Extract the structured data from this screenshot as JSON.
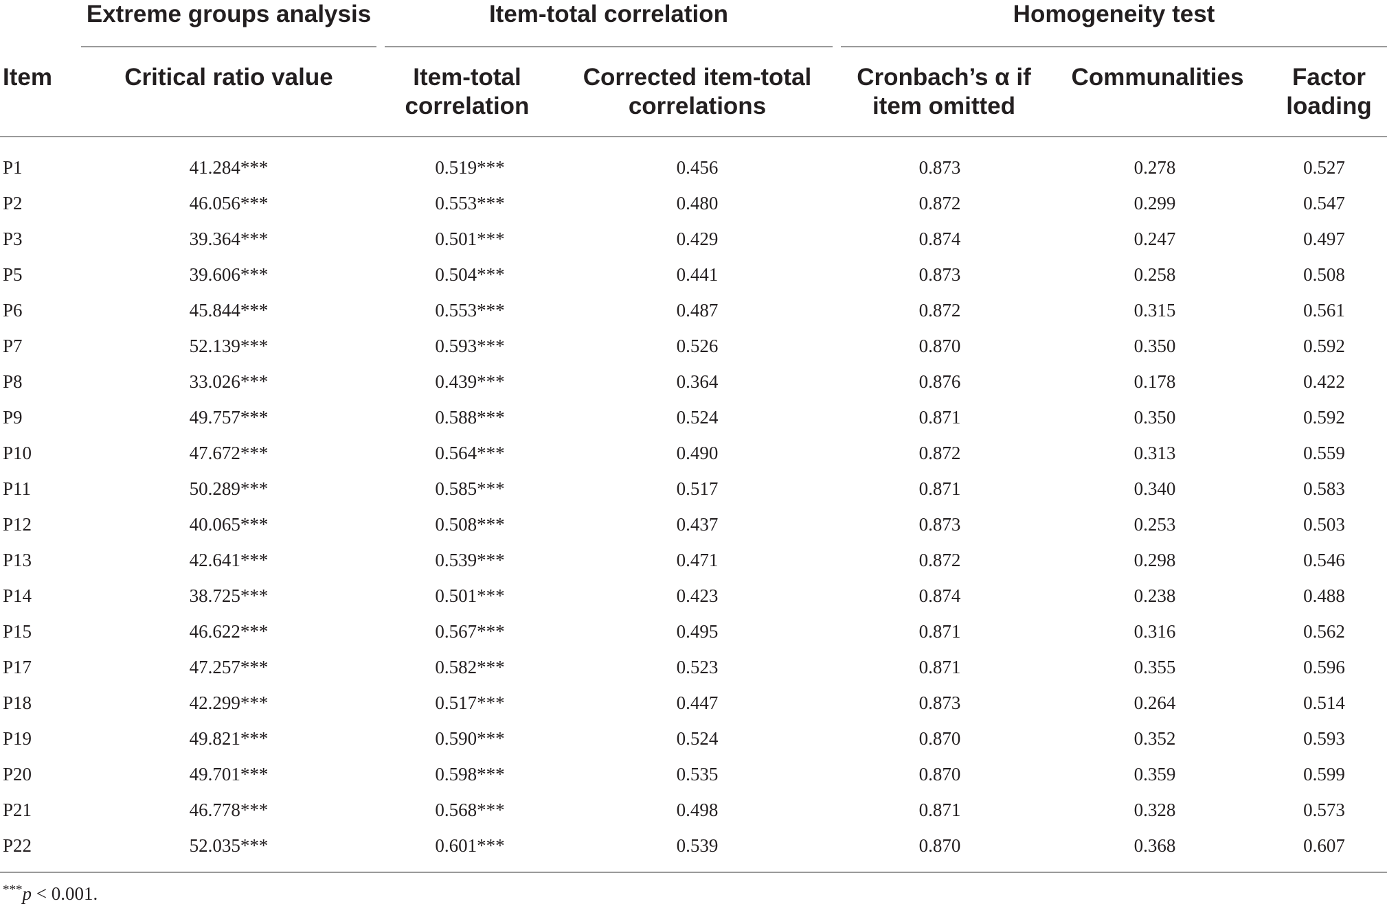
{
  "table": {
    "groups": {
      "extreme": "Extreme groups analysis",
      "item_total": "Item-total correlation",
      "homogeneity": "Homogeneity test"
    },
    "headers": {
      "item": "Item",
      "critical_ratio_value": "Critical ratio value",
      "item_total_line1": "Item-total",
      "item_total_line2": "correlation",
      "corrected_line1": "Corrected item-total",
      "corrected_line2": "correlations",
      "cronbach_line1": "Cronbach’s α if",
      "cronbach_line2": "item omitted",
      "communalities": "Communalities",
      "factor_line1": "Factor",
      "factor_line2": "loading"
    },
    "rows": [
      [
        "P1",
        "41.284***",
        "0.519***",
        "0.456",
        "0.873",
        "0.278",
        "0.527"
      ],
      [
        "P2",
        "46.056***",
        "0.553***",
        "0.480",
        "0.872",
        "0.299",
        "0.547"
      ],
      [
        "P3",
        "39.364***",
        "0.501***",
        "0.429",
        "0.874",
        "0.247",
        "0.497"
      ],
      [
        "P5",
        "39.606***",
        "0.504***",
        "0.441",
        "0.873",
        "0.258",
        "0.508"
      ],
      [
        "P6",
        "45.844***",
        "0.553***",
        "0.487",
        "0.872",
        "0.315",
        "0.561"
      ],
      [
        "P7",
        "52.139***",
        "0.593***",
        "0.526",
        "0.870",
        "0.350",
        "0.592"
      ],
      [
        "P8",
        "33.026***",
        "0.439***",
        "0.364",
        "0.876",
        "0.178",
        "0.422"
      ],
      [
        "P9",
        "49.757***",
        "0.588***",
        "0.524",
        "0.871",
        "0.350",
        "0.592"
      ],
      [
        "P10",
        "47.672***",
        "0.564***",
        "0.490",
        "0.872",
        "0.313",
        "0.559"
      ],
      [
        "P11",
        "50.289***",
        "0.585***",
        "0.517",
        "0.871",
        "0.340",
        "0.583"
      ],
      [
        "P12",
        "40.065***",
        "0.508***",
        "0.437",
        "0.873",
        "0.253",
        "0.503"
      ],
      [
        "P13",
        "42.641***",
        "0.539***",
        "0.471",
        "0.872",
        "0.298",
        "0.546"
      ],
      [
        "P14",
        "38.725***",
        "0.501***",
        "0.423",
        "0.874",
        "0.238",
        "0.488"
      ],
      [
        "P15",
        "46.622***",
        "0.567***",
        "0.495",
        "0.871",
        "0.316",
        "0.562"
      ],
      [
        "P17",
        "47.257***",
        "0.582***",
        "0.523",
        "0.871",
        "0.355",
        "0.596"
      ],
      [
        "P18",
        "42.299***",
        "0.517***",
        "0.447",
        "0.873",
        "0.264",
        "0.514"
      ],
      [
        "P19",
        "49.821***",
        "0.590***",
        "0.524",
        "0.870",
        "0.352",
        "0.593"
      ],
      [
        "P20",
        "49.701***",
        "0.598***",
        "0.535",
        "0.870",
        "0.359",
        "0.599"
      ],
      [
        "P21",
        "46.778***",
        "0.568***",
        "0.498",
        "0.871",
        "0.328",
        "0.573"
      ],
      [
        "P22",
        "52.035***",
        "0.601***",
        "0.539",
        "0.870",
        "0.368",
        "0.607"
      ]
    ],
    "footnote": {
      "stars": "***",
      "p": "p",
      "rest": " < 0.001."
    }
  }
}
